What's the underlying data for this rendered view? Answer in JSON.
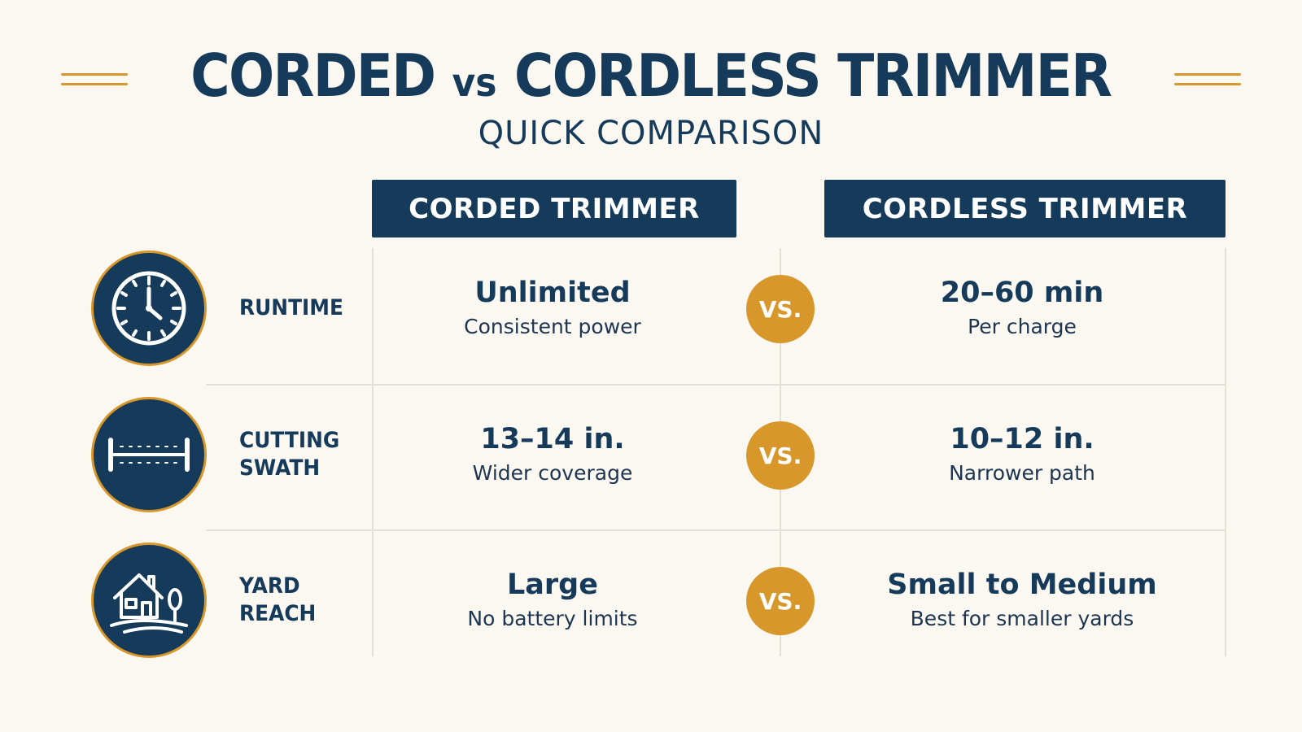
{
  "header": {
    "title_part1": "CORDED",
    "title_vs": "vs",
    "title_part2": "CORDLESS TRIMMER",
    "subtitle": "QUICK COMPARISON"
  },
  "columns": {
    "corded": "CORDED TRIMMER",
    "cordless": "CORDLESS TRIMMER"
  },
  "vs_label": "VS.",
  "rows": [
    {
      "icon": "clock-icon",
      "feature_line1": "RUNTIME",
      "feature_line2": "",
      "corded_value": "Unlimited",
      "corded_note": "Consistent power",
      "cordless_value": "20–60 min",
      "cordless_note": "Per charge"
    },
    {
      "icon": "ruler-icon",
      "feature_line1": "CUTTING",
      "feature_line2": "SWATH",
      "corded_value": "13–14 in.",
      "corded_note": "Wider coverage",
      "cordless_value": "10–12 in.",
      "cordless_note": "Narrower path"
    },
    {
      "icon": "house-icon",
      "feature_line1": "YARD",
      "feature_line2": "REACH",
      "corded_value": "Large",
      "corded_note": "No battery limits",
      "cordless_value": "Small to Medium",
      "cordless_note": "Best for smaller yards"
    }
  ],
  "colors": {
    "navy": "#163a5a",
    "gold": "#d8972a",
    "background": "#fbf8f1"
  }
}
